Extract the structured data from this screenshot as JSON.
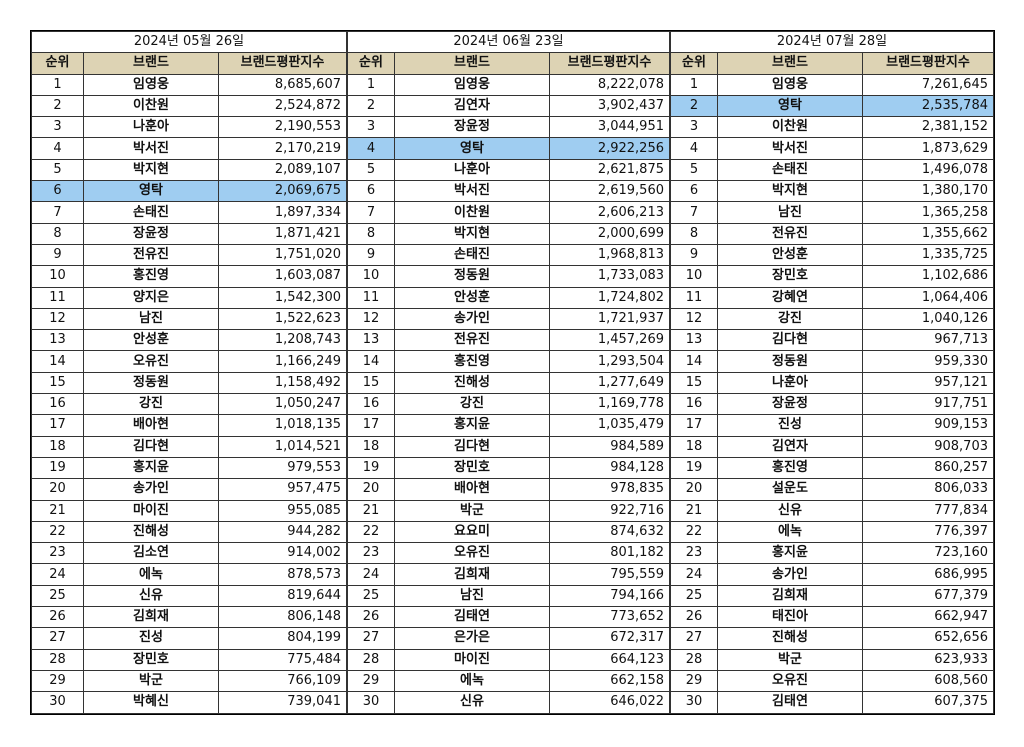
{
  "tables": [
    {
      "date": "2024년 05월 26일",
      "headers": [
        "순위",
        "브랜드",
        "브랜드평판지수"
      ],
      "highlight_row": 5,
      "rows": [
        [
          "1",
          "임영웅",
          "8,685,607"
        ],
        [
          "2",
          "이찬원",
          "2,524,872"
        ],
        [
          "3",
          "나훈아",
          "2,190,553"
        ],
        [
          "4",
          "박서진",
          "2,170,219"
        ],
        [
          "5",
          "박지현",
          "2,089,107"
        ],
        [
          "6",
          "영탁",
          "2,069,675"
        ],
        [
          "7",
          "손태진",
          "1,897,334"
        ],
        [
          "8",
          "장윤정",
          "1,871,421"
        ],
        [
          "9",
          "전유진",
          "1,751,020"
        ],
        [
          "10",
          "홍진영",
          "1,603,087"
        ],
        [
          "11",
          "양지은",
          "1,542,300"
        ],
        [
          "12",
          "남진",
          "1,522,623"
        ],
        [
          "13",
          "안성훈",
          "1,208,743"
        ],
        [
          "14",
          "오유진",
          "1,166,249"
        ],
        [
          "15",
          "정동원",
          "1,158,492"
        ],
        [
          "16",
          "강진",
          "1,050,247"
        ],
        [
          "17",
          "배아현",
          "1,018,135"
        ],
        [
          "18",
          "김다현",
          "1,014,521"
        ],
        [
          "19",
          "홍지윤",
          "979,553"
        ],
        [
          "20",
          "송가인",
          "957,475"
        ],
        [
          "21",
          "마이진",
          "955,085"
        ],
        [
          "22",
          "진해성",
          "944,282"
        ],
        [
          "23",
          "김소연",
          "914,002"
        ],
        [
          "24",
          "에녹",
          "878,573"
        ],
        [
          "25",
          "신유",
          "819,644"
        ],
        [
          "26",
          "김희재",
          "806,148"
        ],
        [
          "27",
          "진성",
          "804,199"
        ],
        [
          "28",
          "장민호",
          "775,484"
        ],
        [
          "29",
          "박군",
          "766,109"
        ],
        [
          "30",
          "박혜신",
          "739,041"
        ]
      ]
    },
    {
      "date": "2024년 06월 23일",
      "headers": [
        "순위",
        "브랜드",
        "브랜드평판지수"
      ],
      "highlight_row": 3,
      "rows": [
        [
          "1",
          "임영웅",
          "8,222,078"
        ],
        [
          "2",
          "김연자",
          "3,902,437"
        ],
        [
          "3",
          "장윤정",
          "3,044,951"
        ],
        [
          "4",
          "영탁",
          "2,922,256"
        ],
        [
          "5",
          "나훈아",
          "2,621,875"
        ],
        [
          "6",
          "박서진",
          "2,619,560"
        ],
        [
          "7",
          "이찬원",
          "2,606,213"
        ],
        [
          "8",
          "박지현",
          "2,000,699"
        ],
        [
          "9",
          "손태진",
          "1,968,813"
        ],
        [
          "10",
          "정동원",
          "1,733,083"
        ],
        [
          "11",
          "안성훈",
          "1,724,802"
        ],
        [
          "12",
          "송가인",
          "1,721,937"
        ],
        [
          "13",
          "전유진",
          "1,457,269"
        ],
        [
          "14",
          "홍진영",
          "1,293,504"
        ],
        [
          "15",
          "진해성",
          "1,277,649"
        ],
        [
          "16",
          "강진",
          "1,169,778"
        ],
        [
          "17",
          "홍지윤",
          "1,035,479"
        ],
        [
          "18",
          "김다현",
          "984,589"
        ],
        [
          "19",
          "장민호",
          "984,128"
        ],
        [
          "20",
          "배아현",
          "978,835"
        ],
        [
          "21",
          "박군",
          "922,716"
        ],
        [
          "22",
          "요요미",
          "874,632"
        ],
        [
          "23",
          "오유진",
          "801,182"
        ],
        [
          "24",
          "김희재",
          "795,559"
        ],
        [
          "25",
          "남진",
          "794,166"
        ],
        [
          "26",
          "김태연",
          "773,652"
        ],
        [
          "27",
          "은가은",
          "672,317"
        ],
        [
          "28",
          "마이진",
          "664,123"
        ],
        [
          "29",
          "에녹",
          "662,158"
        ],
        [
          "30",
          "신유",
          "646,022"
        ]
      ]
    },
    {
      "date": "2024년 07월 28일",
      "headers": [
        "순위",
        "브랜드",
        "브랜드평판지수"
      ],
      "highlight_row": 1,
      "rows": [
        [
          "1",
          "임영웅",
          "7,261,645"
        ],
        [
          "2",
          "영탁",
          "2,535,784"
        ],
        [
          "3",
          "이찬원",
          "2,381,152"
        ],
        [
          "4",
          "박서진",
          "1,873,629"
        ],
        [
          "5",
          "손태진",
          "1,496,078"
        ],
        [
          "6",
          "박지현",
          "1,380,170"
        ],
        [
          "7",
          "남진",
          "1,365,258"
        ],
        [
          "8",
          "전유진",
          "1,355,662"
        ],
        [
          "9",
          "안성훈",
          "1,335,725"
        ],
        [
          "10",
          "장민호",
          "1,102,686"
        ],
        [
          "11",
          "강혜연",
          "1,064,406"
        ],
        [
          "12",
          "강진",
          "1,040,126"
        ],
        [
          "13",
          "김다현",
          "967,713"
        ],
        [
          "14",
          "정동원",
          "959,330"
        ],
        [
          "15",
          "나훈아",
          "957,121"
        ],
        [
          "16",
          "장윤정",
          "917,751"
        ],
        [
          "17",
          "진성",
          "909,153"
        ],
        [
          "18",
          "김연자",
          "908,703"
        ],
        [
          "19",
          "홍진영",
          "860,257"
        ],
        [
          "20",
          "설운도",
          "806,033"
        ],
        [
          "21",
          "신유",
          "777,834"
        ],
        [
          "22",
          "에녹",
          "776,397"
        ],
        [
          "23",
          "홍지윤",
          "723,160"
        ],
        [
          "24",
          "송가인",
          "686,995"
        ],
        [
          "25",
          "김희재",
          "677,379"
        ],
        [
          "26",
          "태진아",
          "662,947"
        ],
        [
          "27",
          "진해성",
          "652,656"
        ],
        [
          "28",
          "박군",
          "623,933"
        ],
        [
          "29",
          "오유진",
          "608,560"
        ],
        [
          "30",
          "김태연",
          "607,375"
        ]
      ]
    }
  ]
}
